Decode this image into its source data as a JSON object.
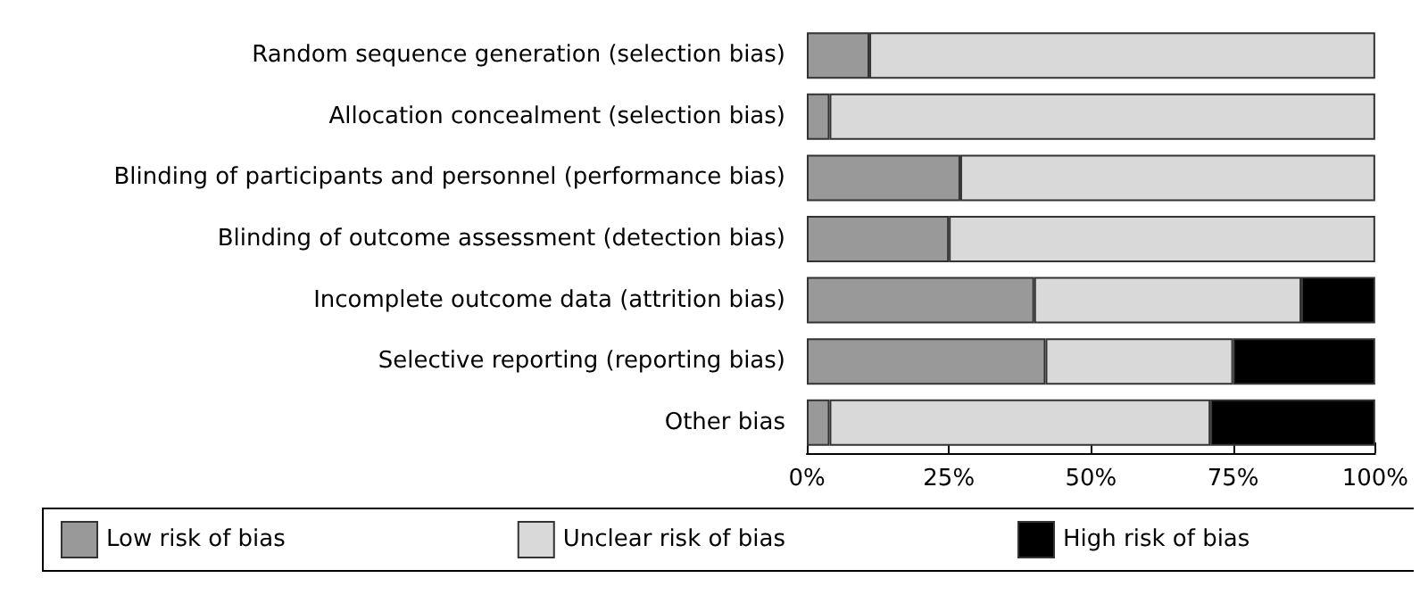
{
  "chart_data": {
    "type": "bar",
    "orientation": "horizontal",
    "stacked": true,
    "categories": [
      "Random sequence generation (selection bias)",
      "Allocation concealment (selection bias)",
      "Blinding of participants and personnel (performance bias)",
      "Blinding of outcome assessment (detection bias)",
      "Incomplete outcome data (attrition bias)",
      "Selective reporting (reporting bias)",
      "Other bias"
    ],
    "series": [
      {
        "name": "Low risk of bias",
        "color": "#999999",
        "values": [
          11,
          4,
          27,
          25,
          40,
          42,
          4
        ]
      },
      {
        "name": "Unclear risk of bias",
        "color": "#d9d9d9",
        "values": [
          89,
          96,
          73,
          75,
          47,
          33,
          67
        ]
      },
      {
        "name": "High risk of bias",
        "color": "#000000",
        "values": [
          0,
          0,
          0,
          0,
          13,
          25,
          29
        ]
      }
    ],
    "xlim": [
      0,
      100
    ],
    "xticks": [
      {
        "value": 0,
        "label": "0%"
      },
      {
        "value": 25,
        "label": "25%"
      },
      {
        "value": 50,
        "label": "50%"
      },
      {
        "value": 75,
        "label": "75%"
      },
      {
        "value": 100,
        "label": "100%"
      }
    ],
    "grid": false,
    "legend": "bottom"
  }
}
